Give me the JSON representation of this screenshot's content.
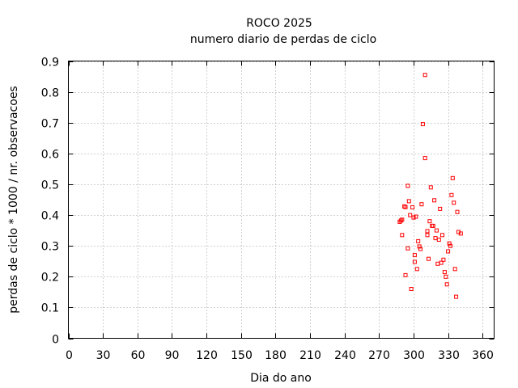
{
  "chart_data": {
    "type": "scatter",
    "title": "ROCO 2025",
    "subtitle": "numero diario de perdas de ciclo",
    "xlabel": "Dia do ano",
    "ylabel": "perdas de ciclo * 1000 / nr. observacoes",
    "xlim": [
      0,
      370
    ],
    "ylim": [
      0,
      0.9
    ],
    "xticks": [
      0,
      30,
      60,
      90,
      120,
      150,
      180,
      210,
      240,
      270,
      300,
      330,
      360
    ],
    "yticks": [
      0,
      0.1,
      0.2,
      0.3,
      0.4,
      0.5,
      0.6,
      0.7,
      0.8,
      0.9
    ],
    "grid": true,
    "marker": "square",
    "point_color": "#ff0000",
    "series": [
      {
        "points": [
          [
            288,
            0.378
          ],
          [
            289,
            0.382
          ],
          [
            290,
            0.335
          ],
          [
            290,
            0.385
          ],
          [
            292,
            0.428
          ],
          [
            293,
            0.426
          ],
          [
            293,
            0.205
          ],
          [
            295,
            0.292
          ],
          [
            295,
            0.495
          ],
          [
            296,
            0.445
          ],
          [
            297,
            0.4
          ],
          [
            298,
            0.16
          ],
          [
            299,
            0.425
          ],
          [
            300,
            0.392
          ],
          [
            301,
            0.27
          ],
          [
            301,
            0.248
          ],
          [
            302,
            0.395
          ],
          [
            303,
            0.225
          ],
          [
            304,
            0.315
          ],
          [
            305,
            0.298
          ],
          [
            306,
            0.29
          ],
          [
            307,
            0.435
          ],
          [
            308,
            0.695
          ],
          [
            310,
            0.855
          ],
          [
            310,
            0.585
          ],
          [
            312,
            0.348
          ],
          [
            312,
            0.335
          ],
          [
            313,
            0.258
          ],
          [
            314,
            0.38
          ],
          [
            315,
            0.49
          ],
          [
            316,
            0.365
          ],
          [
            317,
            0.365
          ],
          [
            318,
            0.448
          ],
          [
            319,
            0.325
          ],
          [
            320,
            0.35
          ],
          [
            321,
            0.242
          ],
          [
            322,
            0.32
          ],
          [
            323,
            0.42
          ],
          [
            324,
            0.245
          ],
          [
            325,
            0.335
          ],
          [
            326,
            0.255
          ],
          [
            327,
            0.215
          ],
          [
            328,
            0.2
          ],
          [
            329,
            0.175
          ],
          [
            330,
            0.282
          ],
          [
            331,
            0.308
          ],
          [
            332,
            0.3
          ],
          [
            333,
            0.465
          ],
          [
            334,
            0.52
          ],
          [
            335,
            0.44
          ],
          [
            336,
            0.225
          ],
          [
            337,
            0.135
          ],
          [
            338,
            0.41
          ],
          [
            339,
            0.345
          ],
          [
            341,
            0.34
          ]
        ]
      }
    ]
  }
}
